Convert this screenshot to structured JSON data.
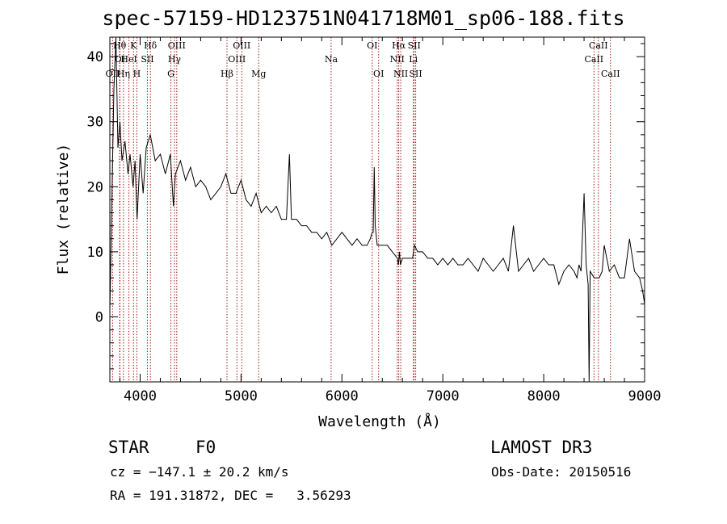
{
  "chart_data": {
    "type": "line",
    "title": "spec-57159-HD123751N041718M01_sp06-188.fits",
    "xlabel": "Wavelength (Å)",
    "ylabel": "Flux (relative)",
    "xlim": [
      3700,
      9000
    ],
    "ylim": [
      -10,
      43
    ],
    "xticks": [
      4000,
      5000,
      6000,
      7000,
      8000,
      9000
    ],
    "yticks": [
      0,
      10,
      20,
      30,
      40
    ],
    "series": [
      {
        "name": "spectrum",
        "x": [
          3700,
          3720,
          3740,
          3760,
          3780,
          3800,
          3820,
          3850,
          3880,
          3900,
          3930,
          3950,
          3970,
          4000,
          4030,
          4060,
          4100,
          4150,
          4200,
          4250,
          4300,
          4330,
          4350,
          4400,
          4450,
          4500,
          4550,
          4600,
          4650,
          4700,
          4750,
          4800,
          4850,
          4900,
          4950,
          5000,
          5050,
          5100,
          5150,
          5200,
          5250,
          5300,
          5350,
          5400,
          5450,
          5480,
          5500,
          5550,
          5600,
          5650,
          5700,
          5750,
          5800,
          5850,
          5900,
          5950,
          6000,
          6050,
          6100,
          6150,
          6200,
          6250,
          6280,
          6300,
          6310,
          6320,
          6330,
          6350,
          6400,
          6450,
          6500,
          6550,
          6560,
          6570,
          6580,
          6600,
          6650,
          6700,
          6720,
          6750,
          6800,
          6850,
          6900,
          6950,
          7000,
          7050,
          7100,
          7150,
          7200,
          7250,
          7300,
          7350,
          7400,
          7450,
          7500,
          7550,
          7600,
          7650,
          7700,
          7750,
          7800,
          7850,
          7900,
          7950,
          8000,
          8050,
          8100,
          8150,
          8200,
          8250,
          8300,
          8330,
          8350,
          8370,
          8400,
          8420,
          8440,
          8450,
          8460,
          8500,
          8550,
          8580,
          8600,
          8650,
          8700,
          8750,
          8800,
          8850,
          8900,
          8950,
          8980,
          9000
        ],
        "y": [
          1,
          18,
          35,
          43,
          26,
          30,
          24,
          27,
          22,
          25,
          20,
          24,
          15,
          25,
          19,
          26,
          28,
          24,
          25,
          22,
          25,
          17,
          22,
          24,
          21,
          23,
          20,
          21,
          20,
          18,
          19,
          20,
          22,
          19,
          19,
          21,
          18,
          17,
          19,
          16,
          17,
          16,
          17,
          15,
          15,
          25,
          15,
          15,
          14,
          14,
          13,
          13,
          12,
          13,
          11,
          12,
          13,
          12,
          11,
          12,
          11,
          11,
          12,
          13,
          13,
          23,
          14,
          11,
          11,
          11,
          10,
          9,
          8,
          10,
          8,
          9,
          9,
          9,
          11,
          10,
          10,
          9,
          9,
          8,
          9,
          8,
          9,
          8,
          8,
          9,
          8,
          7,
          9,
          8,
          7,
          8,
          9,
          7,
          14,
          7,
          8,
          9,
          7,
          8,
          9,
          8,
          8,
          5,
          7,
          8,
          7,
          6,
          8,
          7,
          19,
          8,
          5,
          -10,
          7,
          6,
          6,
          7,
          11,
          7,
          8,
          6,
          6,
          12,
          7,
          6,
          4,
          2
        ]
      }
    ],
    "line_markers": [
      {
        "label": "OII",
        "wavelength": 3727,
        "row": 2
      },
      {
        "label": "Hθ",
        "wavelength": 3797,
        "row": 0
      },
      {
        "label": "OI",
        "wavelength": 3800,
        "row": 1
      },
      {
        "label": "HeI",
        "wavelength": 3889,
        "row": 1
      },
      {
        "label": "Hη",
        "wavelength": 3835,
        "row": 2
      },
      {
        "label": "K",
        "wavelength": 3934,
        "row": 0
      },
      {
        "label": "H",
        "wavelength": 3968,
        "row": 2
      },
      {
        "label": "SII",
        "wavelength": 4072,
        "row": 1
      },
      {
        "label": "Hδ",
        "wavelength": 4102,
        "row": 0
      },
      {
        "label": "OIII",
        "wavelength": 4363,
        "row": 0
      },
      {
        "label": "Hγ",
        "wavelength": 4340,
        "row": 1
      },
      {
        "label": "G",
        "wavelength": 4305,
        "row": 2
      },
      {
        "label": "Hβ",
        "wavelength": 4861,
        "row": 2
      },
      {
        "label": "OIII",
        "wavelength": 5007,
        "row": 0
      },
      {
        "label": "OIII",
        "wavelength": 4959,
        "row": 1
      },
      {
        "label": "Mg",
        "wavelength": 5175,
        "row": 2
      },
      {
        "label": "Na",
        "wavelength": 5893,
        "row": 1
      },
      {
        "label": "OI",
        "wavelength": 6300,
        "row": 0
      },
      {
        "label": "OI",
        "wavelength": 6364,
        "row": 2
      },
      {
        "label": "Hα",
        "wavelength": 6563,
        "row": 0
      },
      {
        "label": "NII",
        "wavelength": 6548,
        "row": 1
      },
      {
        "label": "NII",
        "wavelength": 6583,
        "row": 2
      },
      {
        "label": "SII",
        "wavelength": 6716,
        "row": 0
      },
      {
        "label": "Li",
        "wavelength": 6708,
        "row": 1
      },
      {
        "label": "SII",
        "wavelength": 6731,
        "row": 2
      },
      {
        "label": "CaII",
        "wavelength": 8542,
        "row": 0
      },
      {
        "label": "CaII",
        "wavelength": 8498,
        "row": 1
      },
      {
        "label": "CaII",
        "wavelength": 8662,
        "row": 2
      }
    ]
  },
  "info": {
    "object_type": "STAR",
    "subclass": "F0",
    "survey": "LAMOST DR3",
    "cz_line": "cz = −147.1 ± 20.2 km/s",
    "obs_date_line": "Obs-Date: 20150516",
    "coords_line": "RA = 191.31872, DEC =   3.56293"
  }
}
